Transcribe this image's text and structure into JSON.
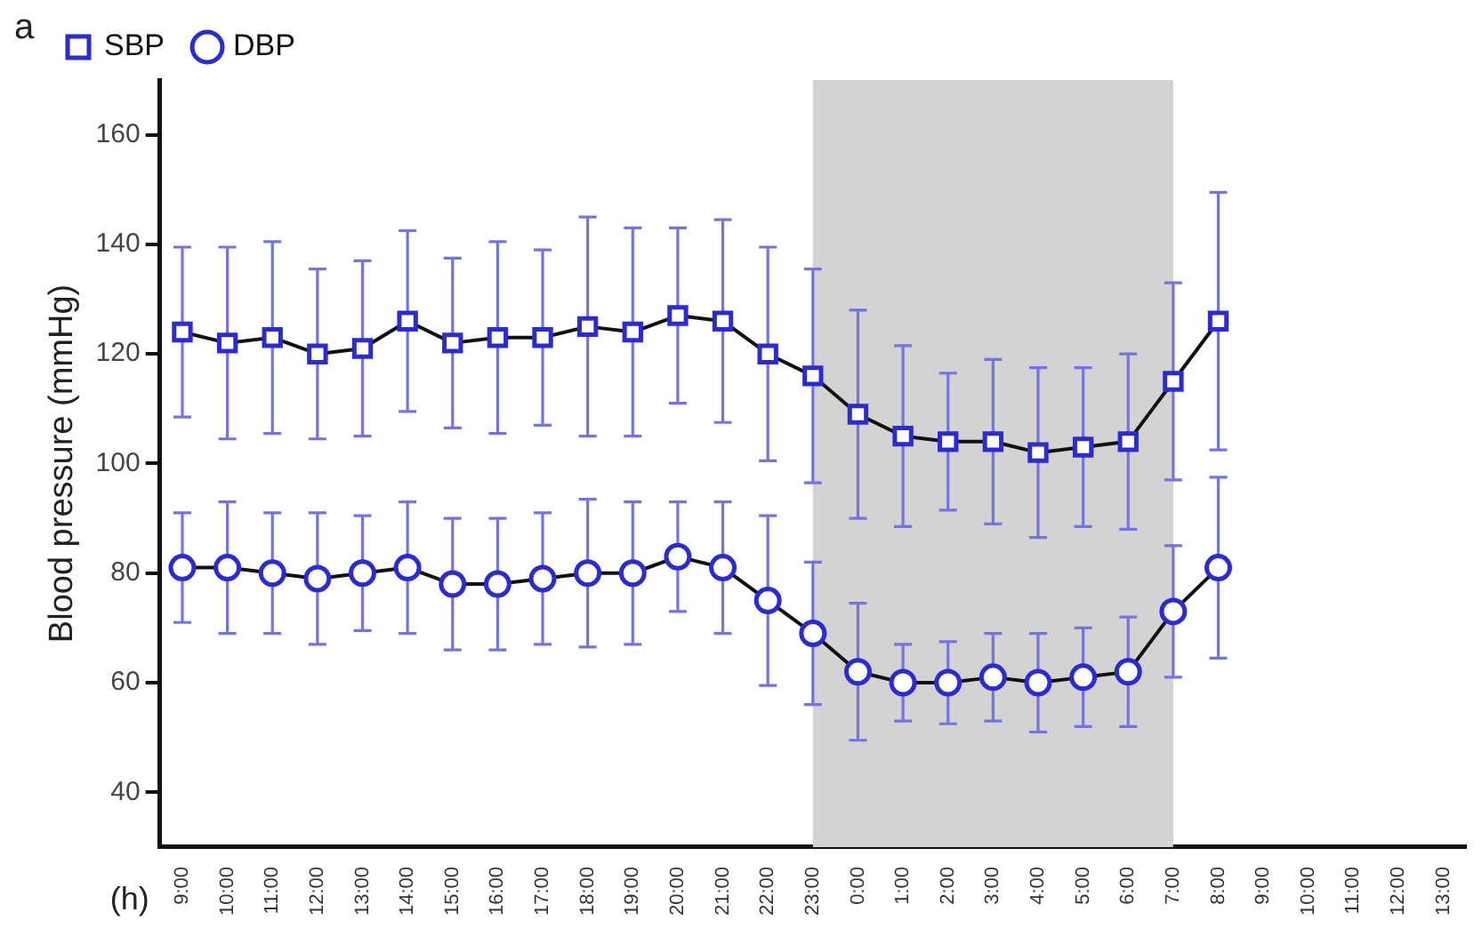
{
  "chart_data": {
    "type": "line",
    "categories": [
      "9:00",
      "10:00",
      "11:00",
      "12:00",
      "13:00",
      "14:00",
      "15:00",
      "16:00",
      "17:00",
      "18:00",
      "19:00",
      "20:00",
      "21:00",
      "22:00",
      "23:00",
      "0:00",
      "1:00",
      "2:00",
      "3:00",
      "4:00",
      "5:00",
      "6:00",
      "7:00",
      "8:00",
      "9:00",
      "10:00",
      "11:00",
      "12:00",
      "13:00"
    ],
    "xlabel": "(h)",
    "ylabel": "Blood pressure (mmHg)",
    "annotations": [
      "a"
    ],
    "ylim": [
      30,
      170
    ],
    "yticks": [
      40,
      60,
      80,
      100,
      120,
      140,
      160
    ],
    "grid": false,
    "legend": "top",
    "bands": [
      {
        "axis": "x",
        "from": "23:00",
        "to": "7:00",
        "color": "#d3d3d3"
      }
    ],
    "series": [
      {
        "name": "SBP",
        "color": "#2b2bd6",
        "marker": "square",
        "values": [
          124,
          122,
          123,
          120,
          121,
          126,
          122,
          123,
          123,
          125,
          124,
          127,
          126,
          120,
          116,
          109,
          105,
          104,
          104,
          102,
          103,
          104,
          115,
          126,
          null,
          null,
          null,
          null,
          null
        ],
        "errors": [
          15.5,
          17.5,
          17.5,
          15.5,
          16,
          16.5,
          15.5,
          17.5,
          16,
          20,
          19,
          16,
          18.5,
          19.5,
          19.5,
          19,
          16.5,
          12.5,
          15,
          15.5,
          14.5,
          16,
          18,
          23.5,
          null,
          null,
          null,
          null,
          null
        ]
      },
      {
        "name": "DBP",
        "color": "#2b2bd6",
        "marker": "circle",
        "values": [
          81,
          81,
          80,
          79,
          80,
          81,
          78,
          78,
          79,
          80,
          80,
          83,
          81,
          75,
          69,
          62,
          60,
          60,
          61,
          60,
          61,
          62,
          73,
          81,
          null,
          null,
          null,
          null,
          null
        ],
        "errors": [
          10,
          12,
          11,
          12,
          10.5,
          12,
          12,
          12,
          12,
          13.5,
          13,
          10,
          12,
          15.5,
          13,
          12.5,
          7,
          7.5,
          8,
          9,
          9,
          10,
          12,
          16.5,
          null,
          null,
          null,
          null,
          null
        ]
      }
    ]
  }
}
